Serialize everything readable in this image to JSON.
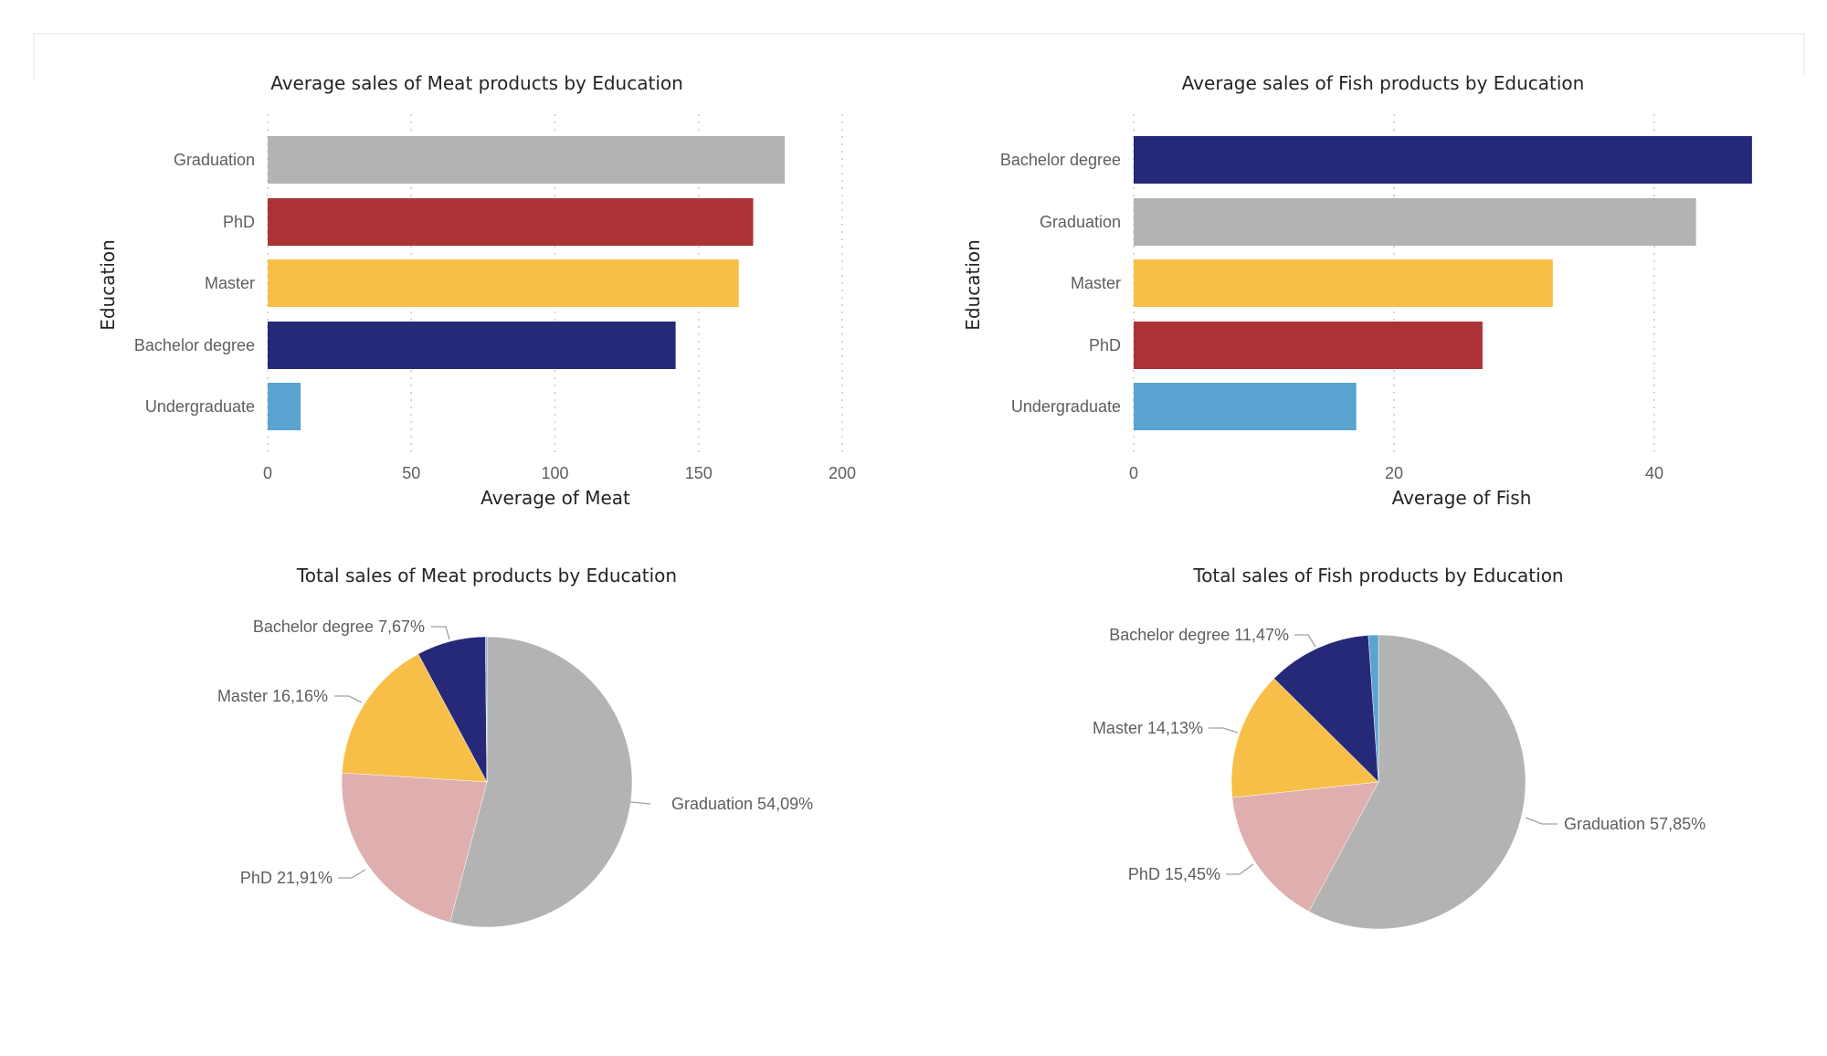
{
  "colors": {
    "Graduation": "#b3b3b3",
    "PhD": "#ab3337",
    "PhD_pie": "#dfaeae",
    "Master": "#f8bf48",
    "Bachelor degree": "#262878",
    "Undergraduate": "#5ba3d0"
  },
  "chart_data": [
    {
      "type": "bar",
      "orientation": "horizontal",
      "title": "Average sales of Meat products by Education",
      "xlabel": "Average of Meat",
      "ylabel": "Education",
      "categories": [
        "Graduation",
        "PhD",
        "Master",
        "Bachelor degree",
        "Undergraduate"
      ],
      "values": [
        180,
        169,
        164,
        142,
        11.5
      ],
      "xlim": [
        0,
        200
      ],
      "xticks": [
        "0",
        "50",
        "100",
        "150",
        "200"
      ],
      "xtick_values": [
        0,
        50,
        100,
        150,
        200
      ],
      "grid": true
    },
    {
      "type": "bar",
      "orientation": "horizontal",
      "title": "Average sales of Fish products by Education",
      "xlabel": "Average of Fish",
      "ylabel": "Education",
      "categories": [
        "Bachelor degree",
        "Graduation",
        "Master",
        "PhD",
        "Undergraduate"
      ],
      "values": [
        47.5,
        43.2,
        32.2,
        26.8,
        17.1
      ],
      "xlim": [
        0,
        48
      ],
      "xticks": [
        "0",
        "20",
        "40"
      ],
      "xtick_values": [
        0,
        20,
        40
      ],
      "grid": true
    },
    {
      "type": "pie",
      "title": "Total sales of Meat products by Education",
      "slices": [
        {
          "name": "Graduation",
          "percent": 54.09,
          "label": "Graduation 54,09%",
          "color": "#b3b3b3"
        },
        {
          "name": "PhD",
          "percent": 21.91,
          "label": "PhD 21,91%",
          "color": "#dfaeae"
        },
        {
          "name": "Master",
          "percent": 16.16,
          "label": "Master 16,16%",
          "color": "#f8bf48"
        },
        {
          "name": "Bachelor degree",
          "percent": 7.67,
          "label": "Bachelor degree 7,67%",
          "color": "#262878"
        },
        {
          "name": "Undergraduate",
          "percent": 0.17,
          "label": "",
          "color": "#5ba3d0"
        }
      ]
    },
    {
      "type": "pie",
      "title": "Total sales of Fish products by Education",
      "slices": [
        {
          "name": "Graduation",
          "percent": 57.85,
          "label": "Graduation 57,85%",
          "color": "#b3b3b3"
        },
        {
          "name": "PhD",
          "percent": 15.45,
          "label": "PhD 15,45%",
          "color": "#dfaeae"
        },
        {
          "name": "Master",
          "percent": 14.13,
          "label": "Master 14,13%",
          "color": "#f8bf48"
        },
        {
          "name": "Bachelor degree",
          "percent": 11.47,
          "label": "Bachelor degree 11,47%",
          "color": "#262878"
        },
        {
          "name": "Undergraduate",
          "percent": 1.1,
          "label": "",
          "color": "#5ba3d0"
        }
      ]
    }
  ]
}
